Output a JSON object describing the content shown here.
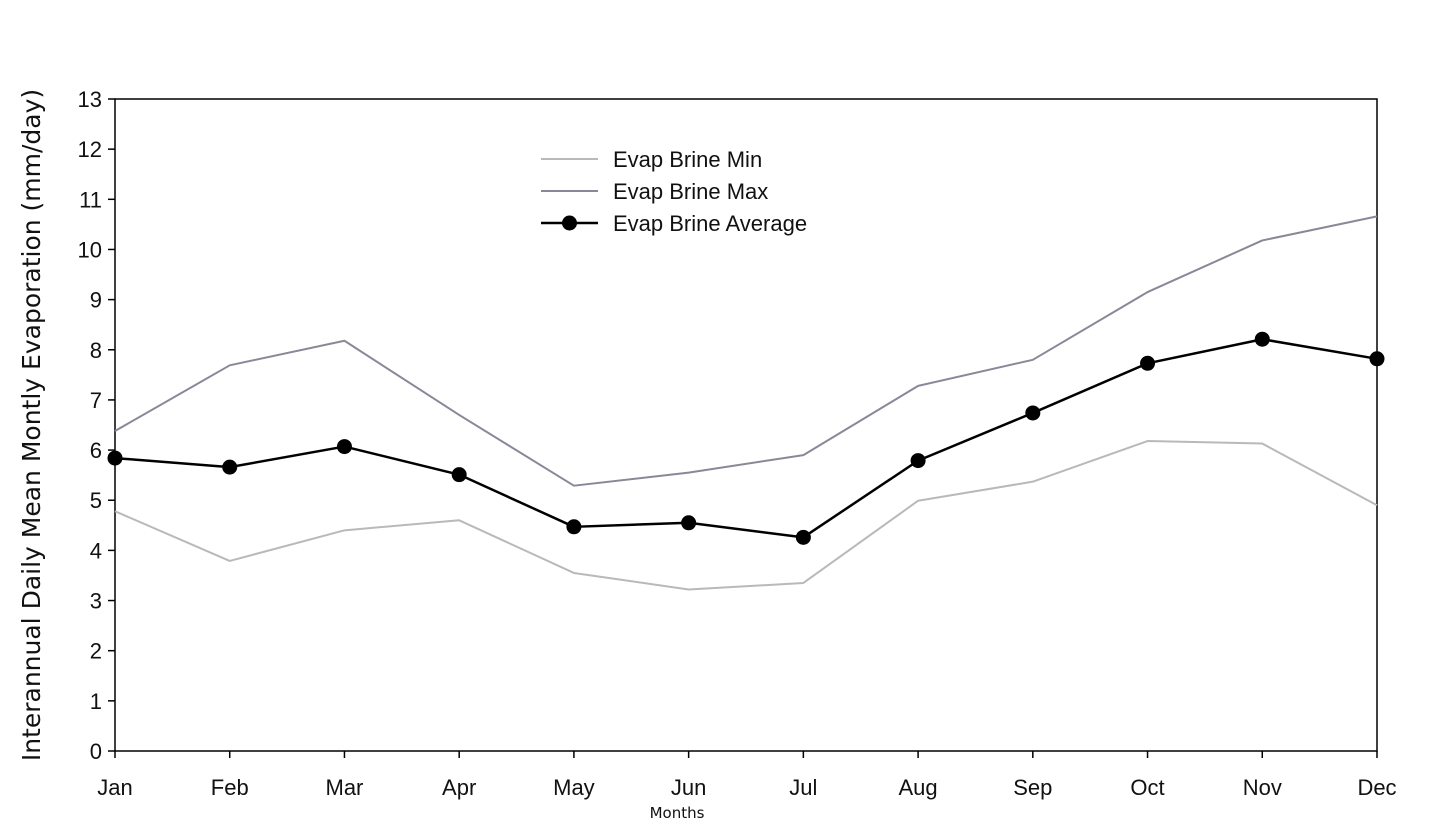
{
  "chart_data": {
    "type": "line",
    "title": "",
    "xlabel": "Months",
    "ylabel": "Interannual Daily Mean Montly  Evaporation  (mm/day)",
    "categories": [
      "Jan",
      "Feb",
      "Mar",
      "Apr",
      "May",
      "Jun",
      "Jul",
      "Aug",
      "Sep",
      "Oct",
      "Nov",
      "Dec"
    ],
    "ylim": [
      0,
      13
    ],
    "yticks": [
      0,
      1,
      2,
      3,
      4,
      5,
      6,
      7,
      8,
      9,
      10,
      11,
      12,
      13
    ],
    "grid": false,
    "legend_position": "top-center",
    "series": [
      {
        "name": "Evap Brine Min",
        "color": "#b9b9b9",
        "markers": false,
        "values": [
          4.78,
          3.79,
          4.4,
          4.6,
          3.55,
          3.22,
          3.35,
          4.99,
          5.37,
          6.18,
          6.13,
          4.9
        ]
      },
      {
        "name": "Evap Brine Max",
        "color": "#8a8898",
        "markers": false,
        "values": [
          6.38,
          7.69,
          8.18,
          6.7,
          5.29,
          5.55,
          5.9,
          7.28,
          7.8,
          9.15,
          10.18,
          10.66
        ]
      },
      {
        "name": "Evap Brine Average",
        "color": "#000000",
        "markers": true,
        "values": [
          5.84,
          5.66,
          6.07,
          5.51,
          4.47,
          4.55,
          4.26,
          5.79,
          6.74,
          7.73,
          8.21,
          7.82
        ]
      }
    ]
  }
}
